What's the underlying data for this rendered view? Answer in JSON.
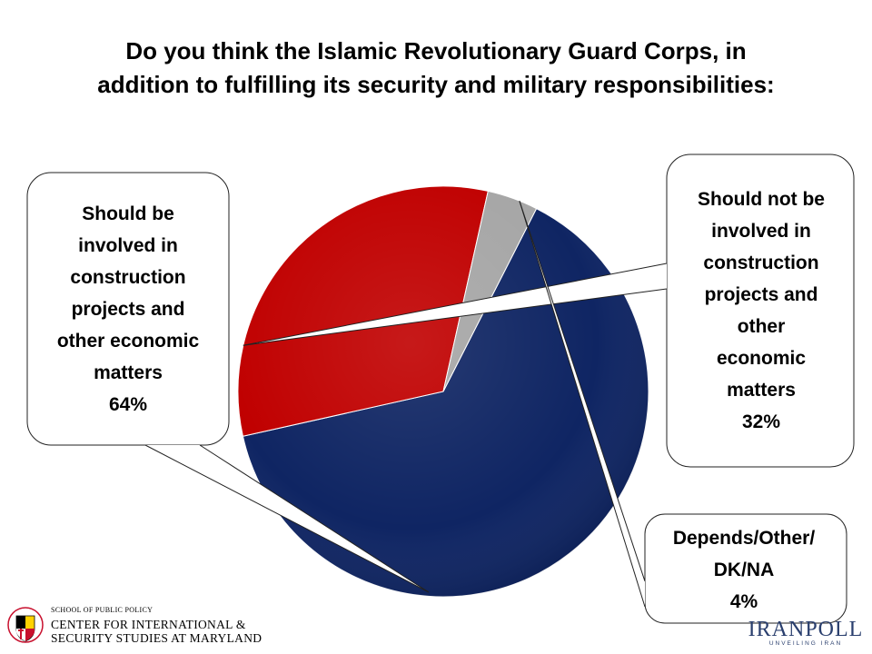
{
  "title_line1": "Do you think the Islamic Revolutionary Guard Corps, in",
  "title_line2": "addition to fulfilling its security and military responsibilities:",
  "chart_data": {
    "type": "pie",
    "title": "Do you think the Islamic Revolutionary Guard Corps, in addition to fulfilling its security and military responsibilities:",
    "categories": [
      "Should be involved in construction projects and other economic matters",
      "Should not be involved in construction projects and other economic matters",
      "Depends/Other/DK/NA"
    ],
    "values": [
      64,
      32,
      4
    ],
    "colors": [
      "#0f2563",
      "#c00000",
      "#a6a6a6"
    ],
    "start_angle_deg": 27,
    "labels": [
      {
        "lines": [
          "Should be",
          "involved in",
          "construction",
          "projects and",
          "other economic",
          "matters"
        ],
        "value": "64%"
      },
      {
        "lines": [
          "Should not be",
          "involved in",
          "construction",
          "projects and",
          "other",
          "economic",
          "matters"
        ],
        "value": "32%"
      },
      {
        "lines": [
          "Depends/Other/",
          "DK/NA"
        ],
        "value": "4%"
      }
    ]
  },
  "logos": {
    "left_school": "SCHOOL OF PUBLIC POLICY",
    "left_center_line1": "CENTER FOR INTERNATIONAL &",
    "left_center_line2": "SECURITY STUDIES AT MARYLAND",
    "left_seal_text": "UNIVERSITY OF MARYLAND",
    "right_brand": "IRANPOLL",
    "right_tagline": "UNVEILING IRAN",
    "brand_color": "#2a3f6e"
  }
}
